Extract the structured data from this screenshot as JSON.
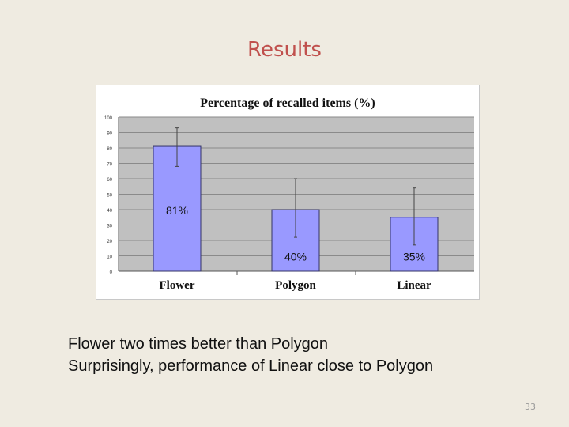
{
  "slide": {
    "title": "Results",
    "bullets": [
      "Flower two times better than Polygon",
      "Surprisingly, performance of Linear close to Polygon"
    ],
    "page_number": "33"
  },
  "chart_data": {
    "type": "bar",
    "title": "Percentage of recalled items (%)",
    "xlabel": "",
    "ylabel": "",
    "categories": [
      "Flower",
      "Polygon",
      "Linear"
    ],
    "values": [
      81,
      40,
      35
    ],
    "error_low": [
      68,
      22,
      17
    ],
    "error_high": [
      93,
      60,
      54
    ],
    "data_labels": [
      "81%",
      "40%",
      "35%"
    ],
    "ylim": [
      0,
      100
    ],
    "yticks": [
      "0",
      "10",
      "20",
      "30",
      "40",
      "50",
      "60",
      "70",
      "80",
      "90",
      "100"
    ],
    "grid": true,
    "bar_color": "#9999ff",
    "bar_edge_color": "#333366",
    "plot_background": "#c0c0c0"
  }
}
